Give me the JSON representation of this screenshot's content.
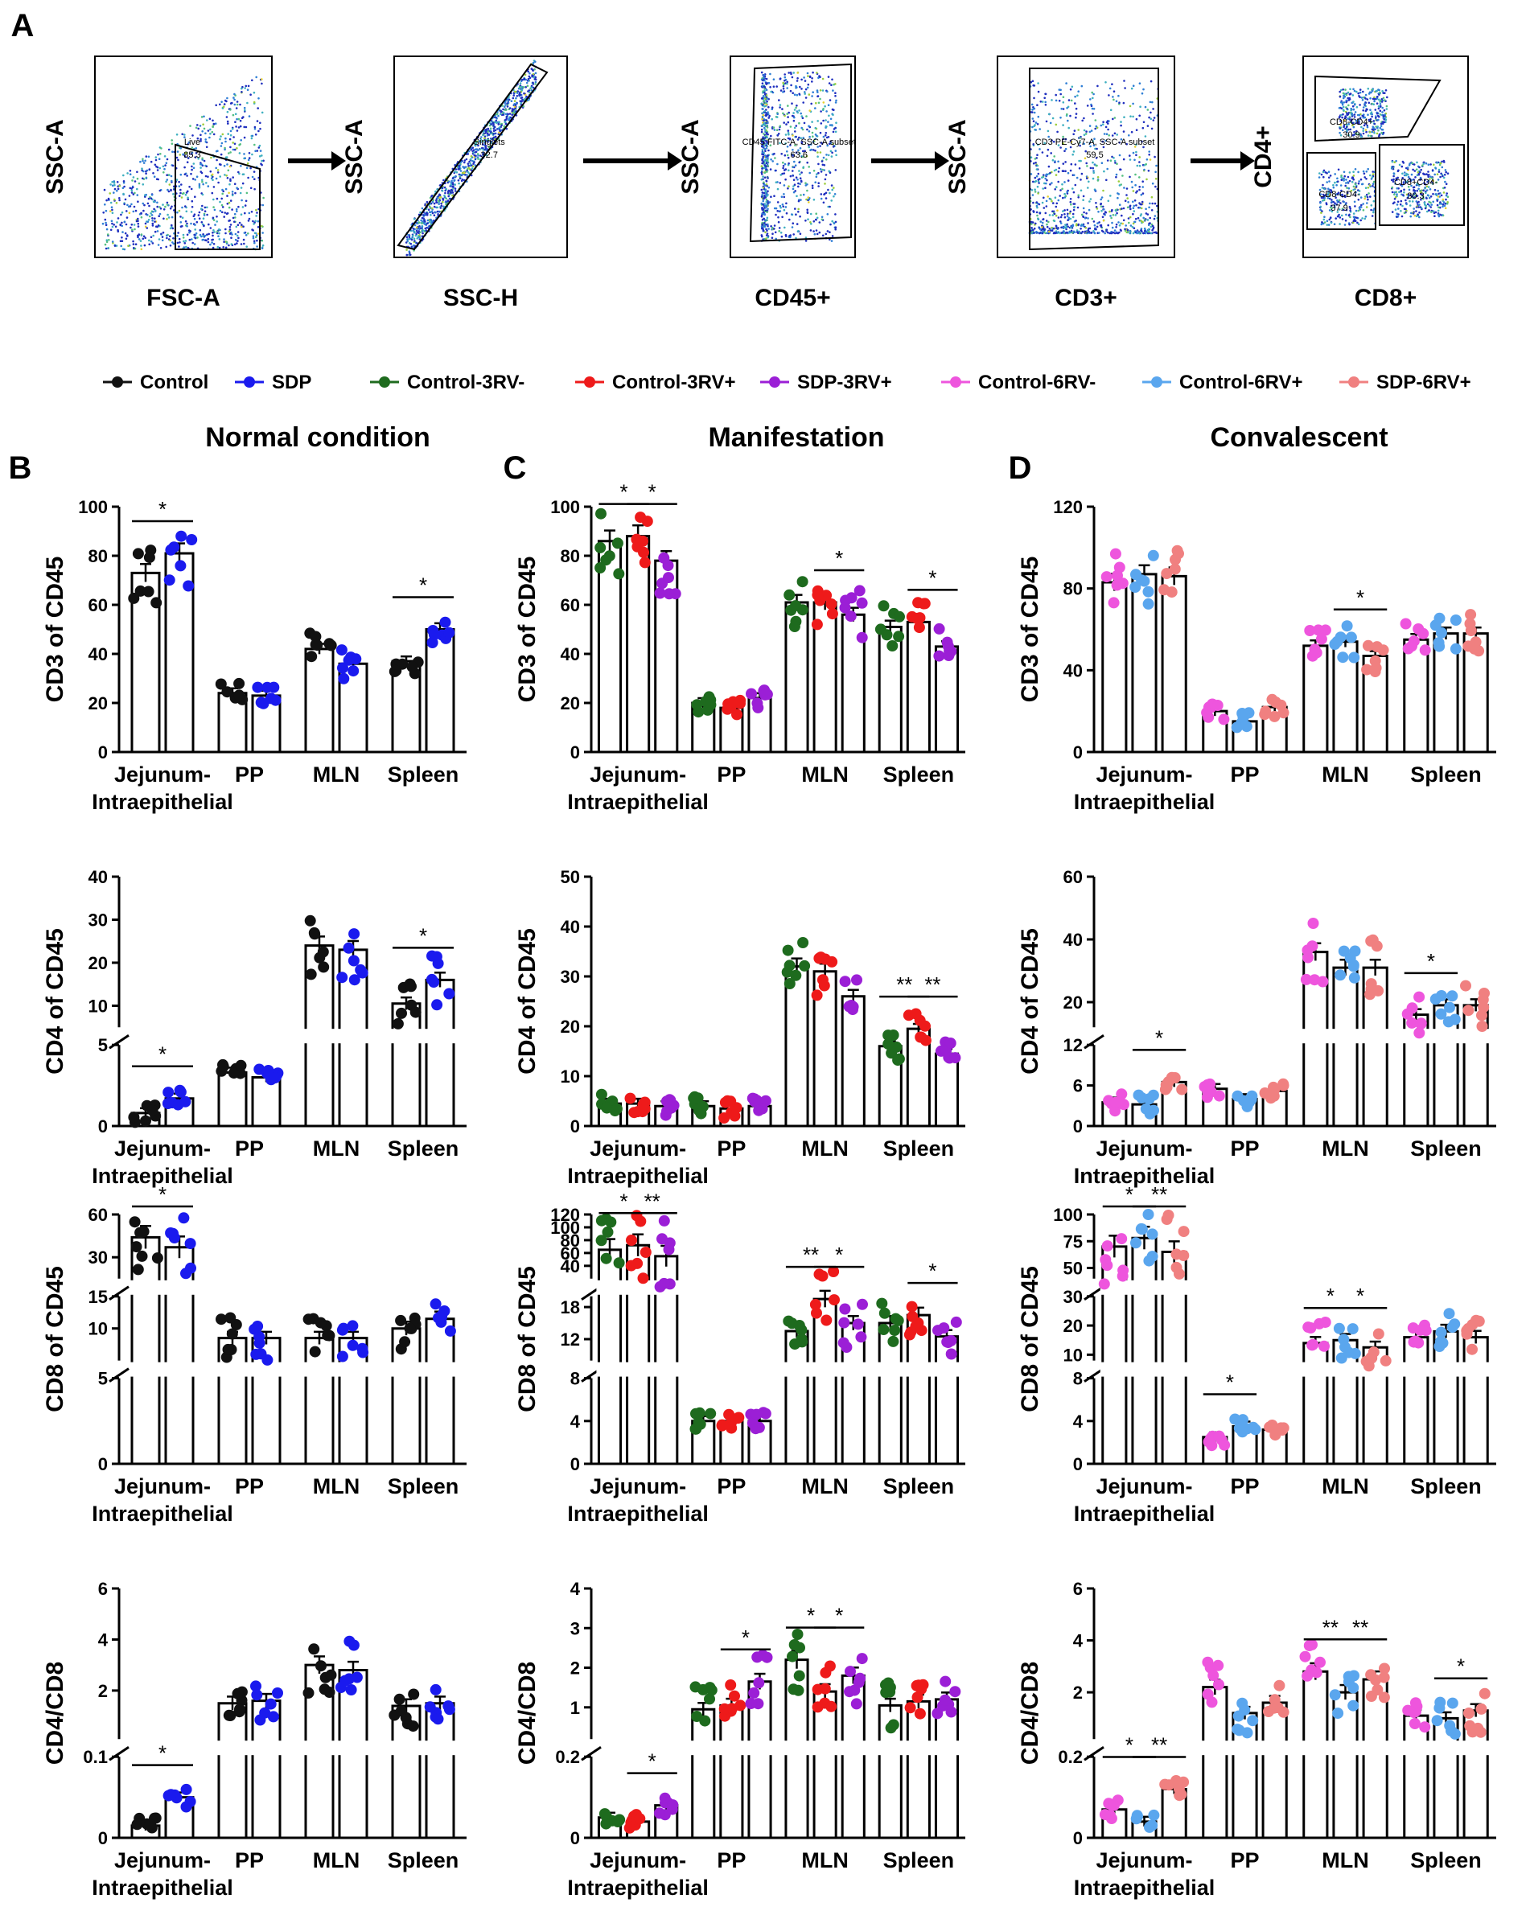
{
  "panel_a": {
    "letter": "A",
    "plots": [
      {
        "ylabel": "SSC-A",
        "xlabel": "FSC-A",
        "gate_name": "Live",
        "gate_value": "85.3"
      },
      {
        "ylabel": "SSC-A",
        "xlabel": "SSC-H",
        "gate_name": "Singlets",
        "gate_value": "32.7"
      },
      {
        "ylabel": "SSC-A",
        "xlabel": "CD45+",
        "gate_name": "CD45 FITC-A, SSC-A subset",
        "gate_value": "63.6"
      },
      {
        "ylabel": "SSC-A",
        "xlabel": "CD3+",
        "gate_name": "CD3 PE-Cy7-A, SSC-A subset",
        "gate_value": "59.5"
      },
      {
        "ylabel": "CD4+",
        "xlabel": "CD8+",
        "gate_name": "CD8-CD4+",
        "gate_value": "30.9",
        "gate2_name": "CD8-CD4-",
        "gate2_value": "37.9",
        "gate3_name": "CD8+CD4-",
        "gate3_value": "30.3"
      }
    ]
  },
  "legend": [
    {
      "label": "Control",
      "color": "#111111"
    },
    {
      "label": "SDP",
      "color": "#1a1aee"
    },
    {
      "label": "Control-3RV-",
      "color": "#1e6b1e"
    },
    {
      "label": "Control-3RV+",
      "color": "#ee1a1a"
    },
    {
      "label": "SDP-3RV+",
      "color": "#9b1fd6"
    },
    {
      "label": "Control-6RV-",
      "color": "#ee55dd"
    },
    {
      "label": "Control-6RV+",
      "color": "#5aa6ee"
    },
    {
      "label": "SDP-6RV+",
      "color": "#f08080"
    }
  ],
  "columns": [
    {
      "letter": "B",
      "title": "Normal condition"
    },
    {
      "letter": "C",
      "title": "Manifestation"
    },
    {
      "letter": "D",
      "title": "Convalescent"
    }
  ],
  "categories": [
    "Jejunum-Intraepithelial",
    "PP",
    "MLN",
    "Spleen"
  ],
  "chart_data": [
    {
      "type": "bar",
      "id": "B1",
      "ylabel": "CD3 of CD45",
      "groups": [
        0,
        1
      ],
      "segments": [
        {
          "ylim": [
            0,
            100
          ],
          "ticks": [
            0,
            20,
            40,
            60,
            80,
            100
          ]
        }
      ],
      "series": [
        {
          "name": "Control",
          "values": [
            73,
            24,
            42,
            37
          ]
        },
        {
          "name": "SDP",
          "values": [
            81,
            23,
            36,
            50
          ]
        }
      ],
      "sig": [
        {
          "cat": 0,
          "from": 0,
          "to": 1,
          "label": "*"
        },
        {
          "cat": 3,
          "from": 0,
          "to": 1,
          "label": "*"
        }
      ]
    },
    {
      "type": "bar",
      "id": "C1",
      "ylabel": "CD3 of CD45",
      "groups": [
        2,
        3,
        4
      ],
      "segments": [
        {
          "ylim": [
            0,
            100
          ],
          "ticks": [
            0,
            20,
            40,
            60,
            80,
            100
          ]
        }
      ],
      "series": [
        {
          "name": "Control-3RV-",
          "values": [
            86,
            20,
            61,
            51
          ]
        },
        {
          "name": "Control-3RV+",
          "values": [
            88,
            18,
            61,
            53
          ]
        },
        {
          "name": "SDP-3RV+",
          "values": [
            78,
            22,
            56,
            43
          ]
        }
      ],
      "sig": [
        {
          "cat": 0,
          "from": 0,
          "to": 1,
          "label": "*"
        },
        {
          "cat": 0,
          "from": 1,
          "to": 2,
          "label": "*"
        },
        {
          "cat": 2,
          "from": 1,
          "to": 2,
          "label": "*"
        },
        {
          "cat": 3,
          "from": 1,
          "to": 2,
          "label": "*"
        }
      ]
    },
    {
      "type": "bar",
      "id": "D1",
      "ylabel": "CD3 of CD45",
      "groups": [
        5,
        6,
        7
      ],
      "segments": [
        {
          "ylim": [
            0,
            120
          ],
          "ticks": [
            0,
            40,
            80,
            120
          ]
        }
      ],
      "series": [
        {
          "name": "Control-6RV-",
          "values": [
            83,
            20,
            52,
            55
          ]
        },
        {
          "name": "Control-6RV+",
          "values": [
            87,
            15,
            54,
            58
          ]
        },
        {
          "name": "SDP-6RV+",
          "values": [
            86,
            22,
            47,
            58
          ]
        }
      ],
      "sig": [
        {
          "cat": 2,
          "from": 1,
          "to": 2,
          "label": "*"
        }
      ]
    },
    {
      "type": "bar",
      "id": "B2",
      "ylabel": "CD4 of CD45",
      "groups": [
        0,
        1
      ],
      "segments": [
        {
          "ylim": [
            0,
            5
          ],
          "ticks": [
            0,
            5
          ]
        },
        {
          "ylim": [
            5,
            40
          ],
          "ticks": [
            10,
            20,
            30,
            40
          ]
        }
      ],
      "series": [
        {
          "name": "Control",
          "values": [
            0.8,
            3.3,
            24,
            10.5
          ]
        },
        {
          "name": "SDP",
          "values": [
            1.7,
            3.0,
            23,
            16
          ]
        }
      ],
      "sig": [
        {
          "cat": 0,
          "from": 0,
          "to": 1,
          "label": "*"
        },
        {
          "cat": 3,
          "from": 0,
          "to": 1,
          "label": "*"
        }
      ]
    },
    {
      "type": "bar",
      "id": "C2",
      "ylabel": "CD4 of CD45",
      "groups": [
        2,
        3,
        4
      ],
      "segments": [
        {
          "ylim": [
            0,
            50
          ],
          "ticks": [
            0,
            10,
            20,
            30,
            40,
            50
          ]
        }
      ],
      "series": [
        {
          "name": "Control-3RV-",
          "values": [
            4.5,
            4,
            32,
            16
          ]
        },
        {
          "name": "Control-3RV+",
          "values": [
            4.5,
            3.5,
            31,
            19.5
          ]
        },
        {
          "name": "SDP-3RV+",
          "values": [
            4,
            4,
            26,
            14.5
          ]
        }
      ],
      "sig": [
        {
          "cat": 3,
          "from": 0,
          "to": 1,
          "label": "**"
        },
        {
          "cat": 3,
          "from": 1,
          "to": 2,
          "label": "**"
        }
      ]
    },
    {
      "type": "bar",
      "id": "D2",
      "ylabel": "CD4 of CD45",
      "groups": [
        5,
        6,
        7
      ],
      "segments": [
        {
          "ylim": [
            0,
            12
          ],
          "ticks": [
            0,
            6,
            12
          ]
        },
        {
          "ylim": [
            12,
            60
          ],
          "ticks": [
            20,
            40,
            60
          ]
        }
      ],
      "series": [
        {
          "name": "Control-6RV-",
          "values": [
            3.5,
            5.5,
            36,
            16
          ]
        },
        {
          "name": "Control-6RV+",
          "values": [
            3.2,
            4,
            31,
            19
          ]
        },
        {
          "name": "SDP-6RV+",
          "values": [
            6.5,
            5.2,
            31,
            19
          ]
        }
      ],
      "sig": [
        {
          "cat": 0,
          "from": 1,
          "to": 2,
          "label": "*"
        },
        {
          "cat": 3,
          "from": 0,
          "to": 1,
          "label": "*"
        }
      ]
    },
    {
      "type": "bar",
      "id": "B3",
      "ylabel": "CD8 of CD45",
      "groups": [
        0,
        1
      ],
      "segments": [
        {
          "ylim": [
            0,
            5
          ],
          "ticks": [
            0,
            5
          ]
        },
        {
          "ylim": [
            5,
            15
          ],
          "ticks": [
            10,
            15
          ]
        },
        {
          "ylim": [
            15,
            60
          ],
          "ticks": [
            30,
            60
          ]
        }
      ],
      "series": [
        {
          "name": "Control",
          "values": [
            3.0,
            8.5,
            8.5,
            10
          ]
        },
        {
          "name": "SDP",
          "values": [
            2.6,
            8.5,
            8.5,
            11.5
          ]
        }
      ],
      "top_values": [
        {
          "cat": 0,
          "values": [
            44,
            37
          ]
        }
      ],
      "sig": [
        {
          "cat": 0,
          "from": 0,
          "to": 1,
          "label": "*"
        }
      ]
    },
    {
      "type": "bar",
      "id": "C3",
      "ylabel": "CD8 of CD45",
      "groups": [
        2,
        3,
        4
      ],
      "segments": [
        {
          "ylim": [
            0,
            8
          ],
          "ticks": [
            0,
            4,
            8
          ]
        },
        {
          "ylim": [
            8,
            20
          ],
          "ticks": [
            12,
            18
          ]
        },
        {
          "ylim": [
            20,
            120
          ],
          "ticks": [
            40,
            60,
            80,
            100,
            120
          ]
        }
      ],
      "series": [
        {
          "name": "Control-3RV-",
          "values": [
            4,
            4,
            13.5,
            15
          ]
        },
        {
          "name": "Control-3RV+",
          "values": [
            4.5,
            4,
            19.5,
            16.5
          ]
        },
        {
          "name": "SDP-3RV+",
          "values": [
            4,
            4,
            15,
            12.5
          ]
        }
      ],
      "top_values": [
        {
          "cat": 0,
          "values": [
            65,
            72,
            55
          ]
        }
      ],
      "sig": [
        {
          "cat": 0,
          "from": 0,
          "to": 1,
          "label": "*"
        },
        {
          "cat": 0,
          "from": 1,
          "to": 2,
          "label": "**"
        },
        {
          "cat": 2,
          "from": 0,
          "to": 1,
          "label": "**"
        },
        {
          "cat": 2,
          "from": 1,
          "to": 2,
          "label": "*"
        },
        {
          "cat": 3,
          "from": 1,
          "to": 2,
          "label": "*"
        }
      ]
    },
    {
      "type": "bar",
      "id": "D3",
      "ylabel": "CD8 of CD45",
      "groups": [
        5,
        6,
        7
      ],
      "segments": [
        {
          "ylim": [
            0,
            8
          ],
          "ticks": [
            0,
            4,
            8
          ]
        },
        {
          "ylim": [
            8,
            30
          ],
          "ticks": [
            10,
            20,
            30
          ]
        },
        {
          "ylim": [
            40,
            100
          ],
          "ticks": [
            50,
            75,
            100
          ]
        }
      ],
      "series": [
        {
          "name": "Control-6RV-",
          "values": [
            3,
            2.5,
            14,
            16
          ]
        },
        {
          "name": "Control-6RV+",
          "values": [
            3,
            3.5,
            15,
            18
          ]
        },
        {
          "name": "SDP-6RV+",
          "values": [
            3,
            3.2,
            12.5,
            16
          ]
        }
      ],
      "top_values": [
        {
          "cat": 0,
          "values": [
            70,
            78,
            65
          ]
        }
      ],
      "sig": [
        {
          "cat": 0,
          "from": 0,
          "to": 1,
          "label": "*"
        },
        {
          "cat": 0,
          "from": 1,
          "to": 2,
          "label": "**"
        },
        {
          "cat": 1,
          "from": 0,
          "to": 1,
          "label": "*"
        },
        {
          "cat": 2,
          "from": 0,
          "to": 1,
          "label": "*"
        },
        {
          "cat": 2,
          "from": 1,
          "to": 2,
          "label": "*"
        }
      ]
    },
    {
      "type": "bar",
      "id": "B4",
      "ylabel": "CD4/CD8",
      "groups": [
        0,
        1
      ],
      "segments": [
        {
          "ylim": [
            0,
            0.1
          ],
          "ticks": [
            0.0,
            0.1
          ]
        },
        {
          "ylim": [
            0.1,
            6
          ],
          "ticks": [
            2,
            4,
            6
          ]
        }
      ],
      "series": [
        {
          "name": "Control",
          "values": [
            0.015,
            1.5,
            3.0,
            1.4
          ]
        },
        {
          "name": "SDP",
          "values": [
            0.05,
            1.6,
            2.8,
            1.5
          ]
        }
      ],
      "sig": [
        {
          "cat": 0,
          "from": 0,
          "to": 1,
          "label": "*"
        }
      ]
    },
    {
      "type": "bar",
      "id": "C4",
      "ylabel": "CD4/CD8",
      "groups": [
        2,
        3,
        4
      ],
      "segments": [
        {
          "ylim": [
            0,
            0.2
          ],
          "ticks": [
            0.0,
            0.2
          ]
        },
        {
          "ylim": [
            0.2,
            4
          ],
          "ticks": [
            1,
            2,
            3,
            4
          ]
        }
      ],
      "series": [
        {
          "name": "Control-3RV-",
          "values": [
            0.05,
            0.95,
            2.2,
            1.05
          ]
        },
        {
          "name": "Control-3RV+",
          "values": [
            0.04,
            1.05,
            1.4,
            1.15
          ]
        },
        {
          "name": "SDP-3RV+",
          "values": [
            0.08,
            1.65,
            1.8,
            1.2
          ]
        }
      ],
      "sig": [
        {
          "cat": 0,
          "from": 1,
          "to": 2,
          "label": "*"
        },
        {
          "cat": 1,
          "from": 1,
          "to": 2,
          "label": "*"
        },
        {
          "cat": 2,
          "from": 0,
          "to": 1,
          "label": "*"
        },
        {
          "cat": 2,
          "from": 1,
          "to": 2,
          "label": "*"
        }
      ]
    },
    {
      "type": "bar",
      "id": "D4",
      "ylabel": "CD4/CD8",
      "groups": [
        5,
        6,
        7
      ],
      "segments": [
        {
          "ylim": [
            0,
            0.2
          ],
          "ticks": [
            0.0,
            0.2
          ]
        },
        {
          "ylim": [
            0.2,
            6
          ],
          "ticks": [
            2,
            4,
            6
          ]
        }
      ],
      "series": [
        {
          "name": "Control-6RV-",
          "values": [
            0.07,
            2.2,
            2.8,
            1.1
          ]
        },
        {
          "name": "Control-6RV+",
          "values": [
            0.04,
            1.2,
            2.0,
            1.0
          ]
        },
        {
          "name": "SDP-6RV+",
          "values": [
            0.12,
            1.6,
            2.5,
            1.3
          ]
        }
      ],
      "sig": [
        {
          "cat": 0,
          "from": 0,
          "to": 1,
          "label": "*"
        },
        {
          "cat": 0,
          "from": 1,
          "to": 2,
          "label": "**"
        },
        {
          "cat": 2,
          "from": 0,
          "to": 1,
          "label": "**"
        },
        {
          "cat": 2,
          "from": 1,
          "to": 2,
          "label": "**"
        },
        {
          "cat": 3,
          "from": 1,
          "to": 2,
          "label": "*"
        }
      ]
    }
  ]
}
